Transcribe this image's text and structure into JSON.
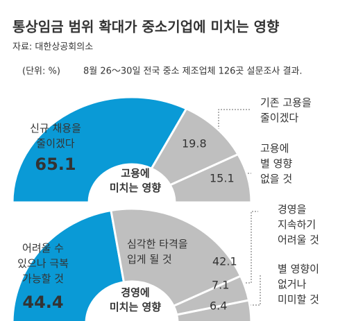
{
  "title": "통상임금 범위 확대가 중소기업에 미치는 영향",
  "source": "자료: 대한상공회의소",
  "unit": "(단위: %)",
  "note": "8월 26～30일 전국 중소 제조업체 126곳 설문조사 결과.",
  "chart_data": [
    {
      "type": "pie",
      "title": "고용에\n미치는 영향",
      "categories": [
        "신규 채용을\n줄이겠다",
        "기존 고용을\n줄이겠다",
        "고용에\n별 영향\n없을 것"
      ],
      "values": [
        65.1,
        19.8,
        15.1
      ],
      "colors": [
        "#0a9ad6",
        "#bfbfbf",
        "#bfbfbf"
      ]
    },
    {
      "type": "pie",
      "title": "경영에\n미치는 영향",
      "categories": [
        "어려울 수\n있으나 극복\n가능할 것",
        "심각한 타격을\n입게 될 것",
        "경영을\n지속하기\n어려울 것",
        "별 영향이\n없거나\n미미할 것"
      ],
      "values": [
        44.4,
        42.1,
        7.1,
        6.4
      ],
      "colors": [
        "#0a9ad6",
        "#bfbfbf",
        "#bfbfbf",
        "#bfbfbf"
      ]
    }
  ]
}
